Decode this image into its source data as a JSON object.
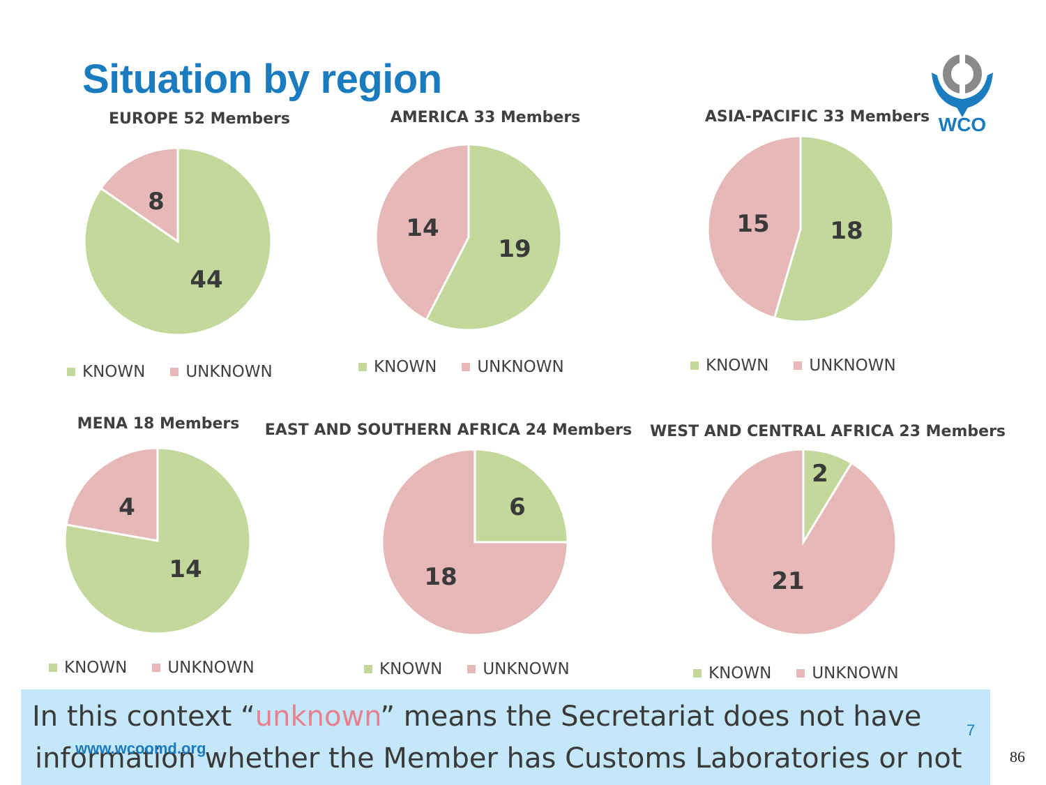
{
  "slide": {
    "title": "Situation by region",
    "logo_text": "WCO",
    "note_part1_before": "In this context “",
    "note_highlight": "unknown",
    "note_part1_after": "” means the Secretariat does not have",
    "note_part2": "information whether the Member has Customs Laboratories or not",
    "url": "www.wcoomd.org",
    "slide_number": "7",
    "page_number": "86"
  },
  "colors": {
    "known": "#c5d89c",
    "unknown": "#e6b8b8",
    "title": "#1a7bbf",
    "note_bg": "#c4e8f9"
  },
  "chart_data": [
    {
      "type": "pie",
      "title": "EUROPE 52 Members",
      "categories": [
        "KNOWN",
        "UNKNOWN"
      ],
      "values": [
        44,
        8
      ],
      "legend": "bottom"
    },
    {
      "type": "pie",
      "title": "AMERICA 33 Members",
      "categories": [
        "KNOWN",
        "UNKNOWN"
      ],
      "values": [
        19,
        14
      ],
      "legend": "bottom"
    },
    {
      "type": "pie",
      "title": "ASIA-PACIFIC 33 Members",
      "categories": [
        "KNOWN",
        "UNKNOWN"
      ],
      "values": [
        18,
        15
      ],
      "legend": "bottom"
    },
    {
      "type": "pie",
      "title": "MENA 18 Members",
      "categories": [
        "KNOWN",
        "UNKNOWN"
      ],
      "values": [
        14,
        4
      ],
      "legend": "bottom"
    },
    {
      "type": "pie",
      "title": "EAST AND SOUTHERN AFRICA 24 Members",
      "categories": [
        "KNOWN",
        "UNKNOWN"
      ],
      "values": [
        6,
        18
      ],
      "legend": "bottom"
    },
    {
      "type": "pie",
      "title": "WEST AND CENTRAL AFRICA 23 Members",
      "categories": [
        "KNOWN",
        "UNKNOWN"
      ],
      "values": [
        2,
        21
      ],
      "legend": "bottom"
    }
  ]
}
